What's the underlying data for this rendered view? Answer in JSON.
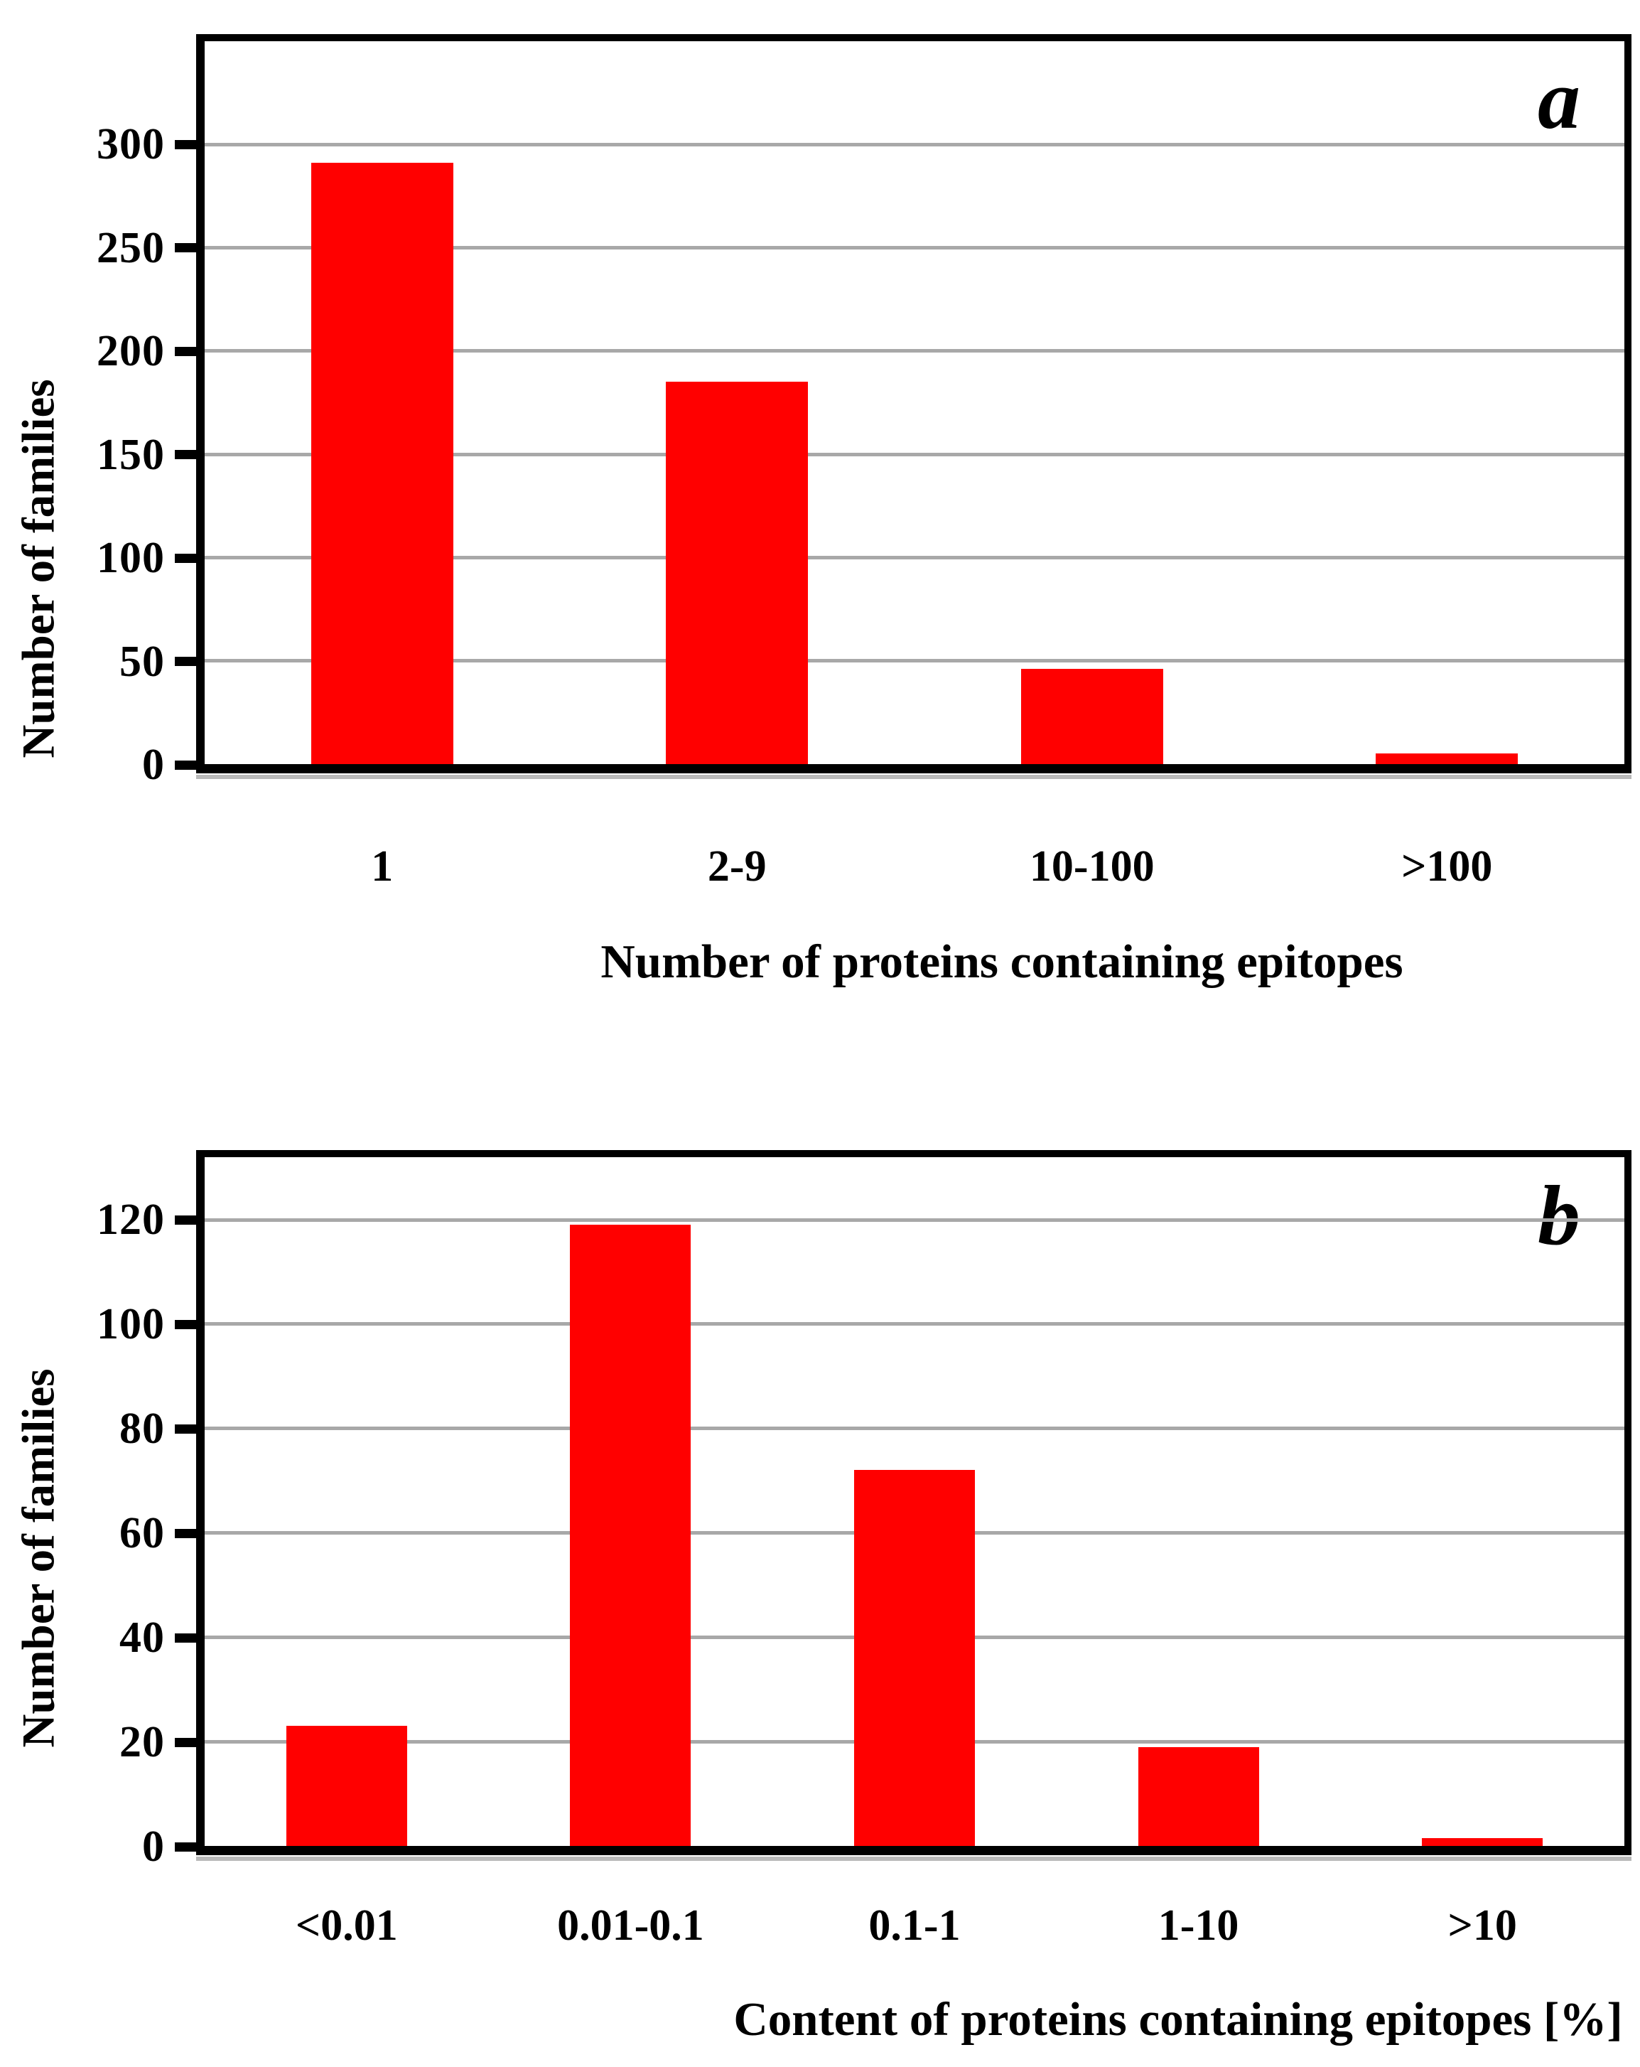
{
  "figure": {
    "background": "#ffffff",
    "frame_color": "#000000",
    "gridline_color": "#a8a8a8"
  },
  "chart_data": [
    {
      "type": "bar",
      "panel_label": "a",
      "categories": [
        "1",
        "2-9",
        "10-100",
        ">100"
      ],
      "values": [
        291,
        185,
        46,
        5
      ],
      "title": "",
      "xlabel": "Number of proteins containing epitopes",
      "ylabel": "Number of families",
      "ylim": [
        0,
        350
      ],
      "yticks": [
        0,
        50,
        100,
        150,
        200,
        250,
        300
      ],
      "grid": true,
      "legend": null,
      "bar_color": "#ff0000",
      "bar_width_frac": 0.1
    },
    {
      "type": "bar",
      "panel_label": "b",
      "categories": [
        "<0.01",
        "0.01-0.1",
        "0.1-1",
        "1-10",
        ">10"
      ],
      "values": [
        23,
        119,
        72,
        19,
        1.5
      ],
      "title": "",
      "xlabel": "Content of proteins containing epitopes [%]",
      "ylabel": "Number of families",
      "ylim": [
        0,
        132
      ],
      "yticks": [
        0,
        20,
        40,
        60,
        80,
        100,
        120
      ],
      "grid": true,
      "legend": null,
      "bar_color": "#ff0000",
      "bar_width_frac": 0.085
    }
  ]
}
